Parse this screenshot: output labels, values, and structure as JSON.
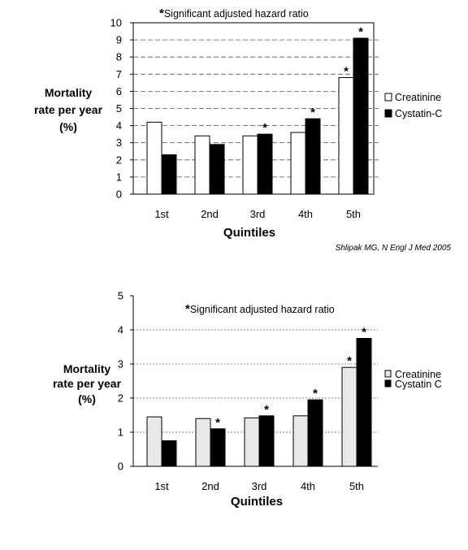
{
  "chart_data": [
    {
      "type": "bar",
      "annotation": "Significant adjusted hazard ratio",
      "annotation_marker": "*",
      "ylabel_lines": [
        "Mortality",
        "rate per year",
        "(%)"
      ],
      "xlabel": "Quintiles",
      "categories": [
        "1st",
        "2nd",
        "3rd",
        "4th",
        "5th"
      ],
      "ylim": [
        0,
        10
      ],
      "yticks": [
        0,
        1,
        2,
        3,
        4,
        5,
        6,
        7,
        8,
        9,
        10
      ],
      "series": [
        {
          "name": "Creatinine",
          "values": [
            4.2,
            3.4,
            3.4,
            3.6,
            6.8
          ],
          "significant": [
            false,
            false,
            false,
            false,
            true
          ],
          "fill": "#ffffff"
        },
        {
          "name": "Cystatin-C",
          "values": [
            2.3,
            2.9,
            3.5,
            4.4,
            9.1
          ],
          "significant": [
            false,
            false,
            true,
            true,
            true
          ],
          "fill": "#000000"
        }
      ],
      "grid": true,
      "legend_position": "right",
      "citation": "Shlipak MG, N Engl J Med 2005"
    },
    {
      "type": "bar",
      "annotation": "Significant adjusted hazard ratio",
      "annotation_marker": "*",
      "ylabel_lines": [
        "Mortality",
        "rate per year",
        "(%)"
      ],
      "xlabel": "Quintiles",
      "categories": [
        "1st",
        "2nd",
        "3rd",
        "4th",
        "5th"
      ],
      "ylim": [
        0,
        5
      ],
      "yticks": [
        0,
        1,
        2,
        3,
        4,
        5
      ],
      "series": [
        {
          "name": "Creatinine",
          "values": [
            1.45,
            1.4,
            1.42,
            1.48,
            2.9
          ],
          "significant": [
            false,
            false,
            false,
            false,
            true
          ],
          "fill": "#e8e8e8"
        },
        {
          "name": "Cystatin C",
          "values": [
            0.75,
            1.1,
            1.48,
            1.95,
            3.75
          ],
          "significant": [
            false,
            true,
            true,
            true,
            true
          ],
          "fill": "#000000"
        }
      ],
      "grid": true,
      "legend_position": "right"
    }
  ]
}
